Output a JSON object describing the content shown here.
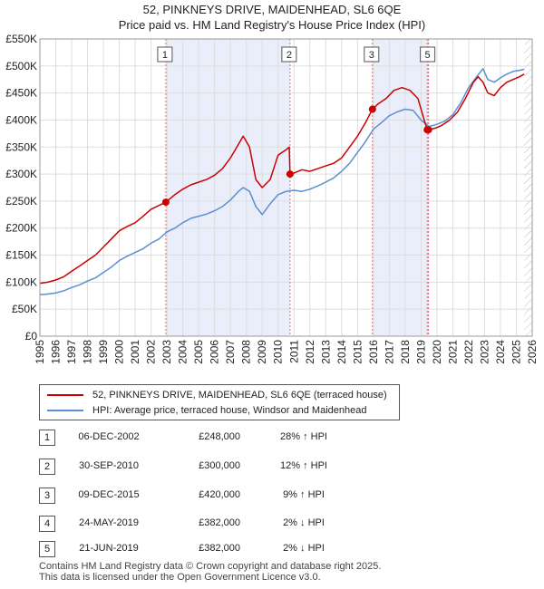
{
  "title_line1": "52, PINKNEYS DRIVE, MAIDENHEAD, SL6 6QE",
  "title_line2": "Price paid vs. HM Land Registry's House Price Index (HPI)",
  "colors": {
    "property": "#cc0000",
    "hpi": "#5b8fd0",
    "shade": "#e9eefa"
  },
  "legend": {
    "property_label": "52, PINKNEYS DRIVE, MAIDENHEAD, SL6 6QE (terraced house)",
    "hpi_label": "HPI: Average price, terraced house, Windsor and Maidenhead"
  },
  "transactions": [
    {
      "num": "1",
      "date": "06-DEC-2002",
      "price": "£248,000",
      "hpi": "28% ↑ HPI"
    },
    {
      "num": "2",
      "date": "30-SEP-2010",
      "price": "£300,000",
      "hpi": "12% ↑ HPI"
    },
    {
      "num": "3",
      "date": "09-DEC-2015",
      "price": "£420,000",
      "hpi": "9% ↑ HPI"
    },
    {
      "num": "4",
      "date": "24-MAY-2019",
      "price": "£382,000",
      "hpi": "2% ↓ HPI"
    },
    {
      "num": "5",
      "date": "21-JUN-2019",
      "price": "£382,000",
      "hpi": "2% ↓ HPI"
    }
  ],
  "footer": {
    "line1": "Contains HM Land Registry data © Crown copyright and database right 2025.",
    "line2": "This data is licensed under the Open Government Licence v3.0."
  },
  "chart_data": {
    "type": "line",
    "xlim": [
      1995,
      2026
    ],
    "ylim": [
      0,
      550000
    ],
    "x_ticks": [
      "1995",
      "1996",
      "1997",
      "1998",
      "1999",
      "2000",
      "2001",
      "2002",
      "2003",
      "2004",
      "2005",
      "2006",
      "2007",
      "2008",
      "2009",
      "2010",
      "2011",
      "2012",
      "2013",
      "2014",
      "2015",
      "2016",
      "2017",
      "2018",
      "2019",
      "2020",
      "2021",
      "2022",
      "2023",
      "2024",
      "2025",
      "2026"
    ],
    "y_ticks": [
      {
        "value": 0,
        "label": "£0"
      },
      {
        "value": 50000,
        "label": "£50K"
      },
      {
        "value": 100000,
        "label": "£100K"
      },
      {
        "value": 150000,
        "label": "£150K"
      },
      {
        "value": 200000,
        "label": "£200K"
      },
      {
        "value": 250000,
        "label": "£250K"
      },
      {
        "value": 300000,
        "label": "£300K"
      },
      {
        "value": 350000,
        "label": "£350K"
      },
      {
        "value": 400000,
        "label": "£400K"
      },
      {
        "value": 450000,
        "label": "£450K"
      },
      {
        "value": 500000,
        "label": "£500K"
      },
      {
        "value": 550000,
        "label": "£550K"
      }
    ],
    "shaded_ranges": [
      [
        2002.93,
        2010.75
      ],
      [
        2015.94,
        2019.47
      ]
    ],
    "hatched_from": 2025.5,
    "sales": [
      {
        "label": "1",
        "x": 2002.93,
        "y": 248000
      },
      {
        "label": "2",
        "x": 2010.75,
        "y": 300000
      },
      {
        "label": "3",
        "x": 2015.94,
        "y": 420000
      },
      {
        "label": "4",
        "x": 2019.39,
        "y": 382000
      },
      {
        "label": "5",
        "x": 2019.47,
        "y": 382000
      }
    ],
    "series": [
      {
        "name": "52, PINKNEYS DRIVE, MAIDENHEAD, SL6 6QE (terraced house)",
        "x": [
          1995.0,
          1995.5,
          1996.0,
          1996.5,
          1997.0,
          1997.5,
          1998.0,
          1998.5,
          1999.0,
          1999.5,
          2000.0,
          2000.5,
          2001.0,
          2001.5,
          2002.0,
          2002.5,
          2002.93,
          2003.5,
          2004.0,
          2004.5,
          2005.0,
          2005.5,
          2006.0,
          2006.5,
          2007.0,
          2007.5,
          2007.8,
          2008.2,
          2008.6,
          2009.0,
          2009.5,
          2010.0,
          2010.5,
          2010.7,
          2010.75,
          2011.0,
          2011.5,
          2012.0,
          2012.5,
          2013.0,
          2013.5,
          2014.0,
          2014.5,
          2015.0,
          2015.5,
          2015.94,
          2016.3,
          2016.8,
          2017.3,
          2017.8,
          2018.3,
          2018.8,
          2019.2,
          2019.39,
          2019.47,
          2019.9,
          2020.3,
          2020.8,
          2021.3,
          2021.8,
          2022.3,
          2022.6,
          2022.9,
          2023.2,
          2023.6,
          2024.0,
          2024.4,
          2024.8,
          2025.2,
          2025.5
        ],
        "y": [
          98000,
          100000,
          104000,
          110000,
          120000,
          130000,
          140000,
          150000,
          165000,
          180000,
          195000,
          203000,
          210000,
          222000,
          235000,
          242000,
          248000,
          262000,
          272000,
          280000,
          285000,
          290000,
          298000,
          310000,
          330000,
          355000,
          370000,
          350000,
          290000,
          275000,
          290000,
          335000,
          345000,
          350000,
          300000,
          302000,
          308000,
          305000,
          310000,
          315000,
          320000,
          330000,
          350000,
          370000,
          395000,
          420000,
          430000,
          440000,
          455000,
          460000,
          455000,
          440000,
          400000,
          382000,
          382000,
          385000,
          390000,
          400000,
          415000,
          440000,
          470000,
          480000,
          470000,
          450000,
          445000,
          460000,
          470000,
          475000,
          480000,
          485000
        ]
      },
      {
        "name": "HPI: Average price, terraced house, Windsor and Maidenhead",
        "x": [
          1995.0,
          1995.5,
          1996.0,
          1996.5,
          1997.0,
          1997.5,
          1998.0,
          1998.5,
          1999.0,
          1999.5,
          2000.0,
          2000.5,
          2001.0,
          2001.5,
          2002.0,
          2002.5,
          2003.0,
          2003.5,
          2004.0,
          2004.5,
          2005.0,
          2005.5,
          2006.0,
          2006.5,
          2007.0,
          2007.5,
          2007.8,
          2008.2,
          2008.6,
          2009.0,
          2009.5,
          2010.0,
          2010.5,
          2011.0,
          2011.5,
          2012.0,
          2012.5,
          2013.0,
          2013.5,
          2014.0,
          2014.5,
          2015.0,
          2015.5,
          2016.0,
          2016.5,
          2017.0,
          2017.5,
          2018.0,
          2018.5,
          2019.0,
          2019.5,
          2020.0,
          2020.5,
          2021.0,
          2021.5,
          2022.0,
          2022.5,
          2022.9,
          2023.2,
          2023.6,
          2024.0,
          2024.4,
          2024.8,
          2025.2,
          2025.5
        ],
        "y": [
          77000,
          78000,
          80000,
          84000,
          90000,
          95000,
          102000,
          108000,
          118000,
          128000,
          140000,
          148000,
          155000,
          162000,
          172000,
          180000,
          193000,
          200000,
          210000,
          218000,
          222000,
          226000,
          232000,
          240000,
          252000,
          268000,
          275000,
          268000,
          240000,
          225000,
          245000,
          262000,
          268000,
          270000,
          268000,
          272000,
          278000,
          285000,
          293000,
          305000,
          320000,
          340000,
          360000,
          383000,
          395000,
          408000,
          415000,
          420000,
          418000,
          400000,
          388000,
          392000,
          398000,
          410000,
          432000,
          460000,
          480000,
          495000,
          475000,
          470000,
          478000,
          485000,
          490000,
          492000,
          494000
        ]
      }
    ]
  }
}
